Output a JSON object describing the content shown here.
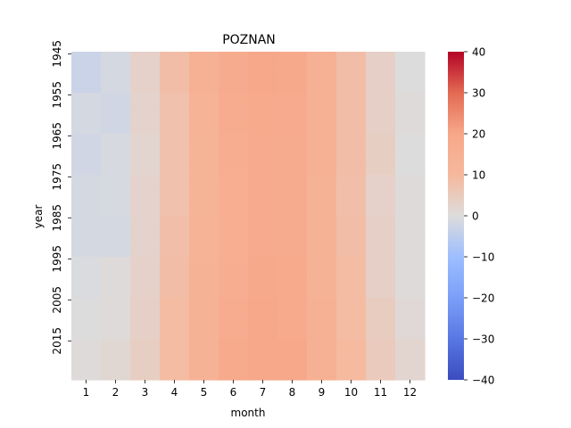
{
  "chart_data": {
    "type": "heatmap",
    "title": "POZNAN",
    "xlabel": "month",
    "ylabel": "year",
    "x": [
      "1",
      "2",
      "3",
      "4",
      "5",
      "6",
      "7",
      "8",
      "9",
      "10",
      "11",
      "12"
    ],
    "y_tick_labels": [
      "1945",
      "1955",
      "1965",
      "1975",
      "1985",
      "1995",
      "2005",
      "2015"
    ],
    "y_first_year": 1945,
    "y_last_year": 2024,
    "year_bands": [
      {
        "from": 1945,
        "to": 1954,
        "values": [
          -3.0,
          -1.5,
          3.0,
          8.5,
          14.0,
          17.5,
          19.5,
          19.0,
          14.5,
          8.5,
          3.5,
          0.0
        ]
      },
      {
        "from": 1955,
        "to": 1964,
        "values": [
          -1.5,
          -2.0,
          2.5,
          7.5,
          13.0,
          17.0,
          18.5,
          18.0,
          14.0,
          8.5,
          3.5,
          0.5
        ]
      },
      {
        "from": 1965,
        "to": 1974,
        "values": [
          -2.0,
          -1.0,
          2.0,
          7.5,
          12.5,
          16.5,
          18.0,
          17.5,
          14.0,
          8.5,
          4.0,
          0.0
        ]
      },
      {
        "from": 1975,
        "to": 1984,
        "values": [
          -1.5,
          -1.0,
          2.5,
          7.5,
          12.5,
          16.0,
          18.0,
          17.5,
          13.5,
          8.0,
          3.0,
          0.5
        ]
      },
      {
        "from": 1985,
        "to": 1994,
        "values": [
          -1.5,
          -1.5,
          2.5,
          8.0,
          13.0,
          16.0,
          18.0,
          17.5,
          13.5,
          8.5,
          3.5,
          0.5
        ]
      },
      {
        "from": 1995,
        "to": 2004,
        "values": [
          -0.5,
          0.5,
          3.0,
          8.5,
          13.5,
          16.5,
          19.0,
          18.5,
          13.5,
          9.0,
          3.5,
          0.5
        ]
      },
      {
        "from": 2005,
        "to": 2014,
        "values": [
          0.0,
          0.5,
          3.5,
          9.0,
          13.5,
          17.0,
          19.5,
          18.5,
          14.5,
          9.0,
          4.5,
          1.0
        ]
      },
      {
        "from": 2015,
        "to": 2024,
        "values": [
          0.5,
          1.5,
          4.0,
          9.0,
          13.5,
          18.5,
          19.5,
          19.5,
          14.5,
          9.5,
          5.0,
          2.0
        ]
      }
    ],
    "colorbar": {
      "ticks": [
        40,
        30,
        20,
        10,
        0,
        -10,
        -20,
        -30,
        -40
      ],
      "tick_labels": [
        "40",
        "30",
        "20",
        "10",
        "0",
        "−10",
        "−20",
        "−30",
        "−40"
      ],
      "range": [
        -40,
        40
      ],
      "colormap": "coolwarm"
    },
    "grid": false,
    "legend": "colorbar-right"
  }
}
